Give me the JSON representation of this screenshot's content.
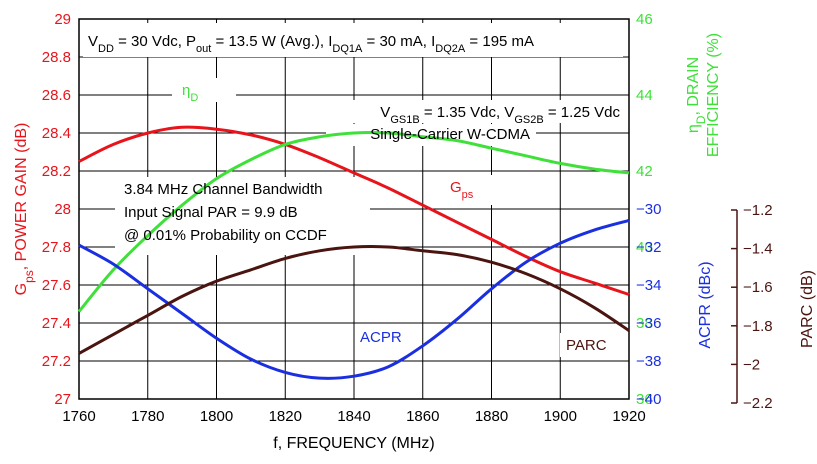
{
  "chart_data": {
    "type": "line",
    "xlabel": "f, FREQUENCY (MHz)",
    "x_ticks": [
      "1760",
      "1780",
      "1800",
      "1820",
      "1840",
      "1860",
      "1880",
      "1900",
      "1920"
    ],
    "xlim": [
      1760,
      1920
    ],
    "axes": {
      "gain": {
        "label_main": "G",
        "label_sub": "ps",
        "label_rest": ", POWER GAIN (dB)",
        "ylim": [
          27,
          29
        ],
        "ticks": [
          "27",
          "27.2",
          "27.4",
          "27.6",
          "27.8",
          "28",
          "28.2",
          "28.4",
          "28.6",
          "28.8",
          "29"
        ],
        "color": "#e8141b"
      },
      "efficiency": {
        "label_main": "η",
        "label_sub": "D",
        "label_rest1": ", DRAIN",
        "label_rest2": "EFFICIENCY (%)",
        "ylim": [
          36,
          46
        ],
        "ticks": [
          "36",
          "38",
          "40",
          "42",
          "44",
          "46"
        ],
        "color": "#3fe03a"
      },
      "acpr": {
        "label": "ACPR (dBc)",
        "ylim": [
          -40,
          -20
        ],
        "ticks": [
          "−40",
          "−38",
          "−36",
          "−34",
          "−32",
          "−30"
        ],
        "color": "#1a2fe0"
      },
      "parc": {
        "label": "PARC (dB)",
        "ylim": [
          -2.2,
          -1.2
        ],
        "ticks": [
          "−2.2",
          "−2",
          "−1.8",
          "−1.6",
          "−1.4",
          "−1.2"
        ],
        "color": "#4a1410"
      }
    },
    "series": [
      {
        "name": "Gps",
        "label_main": "G",
        "label_sub": "ps",
        "axis": "gain",
        "color": "#e8141b",
        "x": [
          1760,
          1770,
          1780,
          1790,
          1800,
          1810,
          1820,
          1830,
          1840,
          1850,
          1860,
          1870,
          1880,
          1890,
          1900,
          1910,
          1920
        ],
        "y": [
          28.25,
          28.34,
          28.4,
          28.43,
          28.42,
          28.39,
          28.34,
          28.27,
          28.19,
          28.11,
          28.02,
          27.93,
          27.84,
          27.75,
          27.67,
          27.61,
          27.55
        ]
      },
      {
        "name": "ηD",
        "label_main": "η",
        "label_sub": "D",
        "axis": "efficiency",
        "color": "#3fe03a",
        "x": [
          1760,
          1770,
          1780,
          1790,
          1800,
          1810,
          1820,
          1830,
          1840,
          1850,
          1860,
          1870,
          1880,
          1890,
          1900,
          1910,
          1920
        ],
        "y": [
          38.3,
          39.4,
          40.3,
          41.1,
          41.8,
          42.3,
          42.7,
          42.9,
          43.0,
          43.0,
          42.9,
          42.8,
          42.6,
          42.4,
          42.2,
          42.05,
          41.95
        ]
      },
      {
        "name": "ACPR",
        "label_main": "ACPR",
        "axis": "acpr",
        "color": "#1a2fe0",
        "x": [
          1760,
          1770,
          1780,
          1790,
          1800,
          1810,
          1820,
          1830,
          1840,
          1850,
          1860,
          1870,
          1880,
          1890,
          1900,
          1910,
          1920
        ],
        "y": [
          -31.9,
          -32.9,
          -34.2,
          -35.5,
          -36.8,
          -37.9,
          -38.6,
          -38.9,
          -38.8,
          -38.3,
          -37.2,
          -35.8,
          -34.2,
          -32.8,
          -31.8,
          -31.1,
          -30.6
        ]
      },
      {
        "name": "PARC",
        "label_main": "PARC",
        "axis": "parc",
        "color": "#4a1410",
        "x": [
          1760,
          1770,
          1780,
          1790,
          1800,
          1810,
          1820,
          1830,
          1840,
          1850,
          1860,
          1870,
          1880,
          1890,
          1900,
          1910,
          1920
        ],
        "y": [
          -2.08,
          -2.03,
          -1.98,
          -1.93,
          -1.89,
          -1.86,
          -1.83,
          -1.81,
          -1.8,
          -1.8,
          -1.81,
          -1.82,
          -1.84,
          -1.87,
          -1.91,
          -1.96,
          -2.02
        ]
      }
    ],
    "annotations": {
      "top": [
        {
          "t": "V"
        },
        {
          "t": "DD",
          "sub": true
        },
        {
          "t": " = 30 Vdc, P"
        },
        {
          "t": "out",
          "sub": true
        },
        {
          "t": " = 13.5 W (Avg.), I"
        },
        {
          "t": "DQ1A",
          "sub": true
        },
        {
          "t": " = 30 mA, I"
        },
        {
          "t": "DQ2A",
          "sub": true
        },
        {
          "t": " = 195 mA"
        }
      ],
      "vgs": [
        {
          "t": "V"
        },
        {
          "t": "GS1B",
          "sub": true
        },
        {
          "t": " = 1.35 Vdc, V"
        },
        {
          "t": "GS2B",
          "sub": true
        },
        {
          "t": " = 1.25 Vdc"
        }
      ],
      "carrier": "Single-Carrier W-CDMA",
      "box_lines": [
        "3.84 MHz Channel Bandwidth",
        "Input Signal PAR = 9.9 dB",
        "@ 0.01% Probability on CCDF"
      ]
    }
  }
}
